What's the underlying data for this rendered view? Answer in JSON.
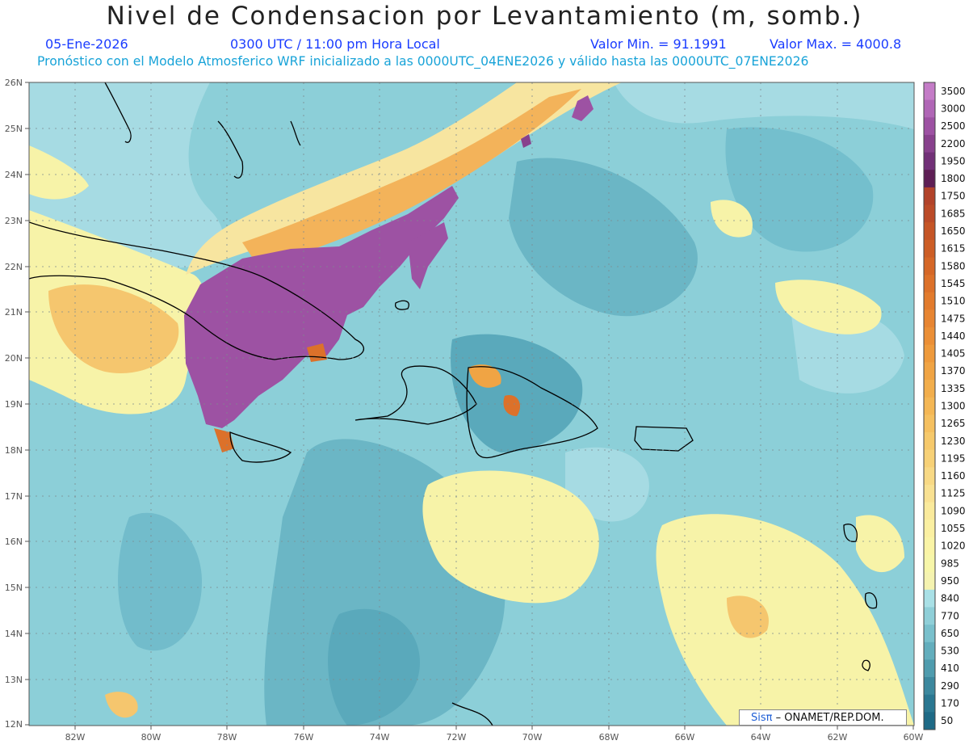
{
  "header": {
    "title": "Nivel de Condensacion por Levantamiento (m, somb.)",
    "date": "05-Ene-2026",
    "time": "0300 UTC / 11:00 pm Hora Local",
    "min_label": "Valor Min. = 91.1991",
    "max_label": "Valor Max. = 4000.8",
    "model_line": "Pronóstico con el Modelo Atmosferico WRF inicializado a las 0000UTC_04ENE2026 y válido hasta las  0000UTC_07ENE2026"
  },
  "axes": {
    "lat_labels": [
      "26N",
      "25N",
      "24N",
      "23N",
      "22N",
      "21N",
      "20N",
      "19N",
      "18N",
      "17N",
      "16N",
      "15N",
      "14N",
      "13N",
      "12N"
    ],
    "lon_labels": [
      "82W",
      "80W",
      "78W",
      "76W",
      "74W",
      "72W",
      "70W",
      "68W",
      "66W",
      "64W",
      "62W",
      "60W"
    ]
  },
  "colorbar": {
    "levels": [
      "3500",
      "3000",
      "2500",
      "2200",
      "1950",
      "1800",
      "1750",
      "1685",
      "1650",
      "1615",
      "1580",
      "1545",
      "1510",
      "1475",
      "1440",
      "1405",
      "1370",
      "1335",
      "1300",
      "1265",
      "1230",
      "1195",
      "1160",
      "1125",
      "1090",
      "1055",
      "1020",
      "985",
      "950",
      "840",
      "770",
      "650",
      "530",
      "410",
      "290",
      "170",
      "50"
    ],
    "colors": [
      "#c47cc7",
      "#b066b6",
      "#9d52a3",
      "#88418d",
      "#723178",
      "#5e1f55",
      "#b2432a",
      "#bb4b28",
      "#c55526",
      "#cd5e26",
      "#d56727",
      "#dc712a",
      "#e27b2d",
      "#e78532",
      "#eb8f36",
      "#ee9a3c",
      "#f0a444",
      "#f2ae4c",
      "#f4b755",
      "#f5c060",
      "#f6c96b",
      "#f7d177",
      "#f8d985",
      "#f9e192",
      "#faea9c",
      "#fbf0a2",
      "#faf4a6",
      "#f7f6a9",
      "#f5f3b0",
      "#a9e0e6",
      "#8fcfd8",
      "#79c0cc",
      "#63aebd",
      "#4f9cae",
      "#3c889e",
      "#2a7791",
      "#1e6a86"
    ],
    "color_legend": "3500 → 50 m"
  },
  "credit": {
    "sis": "Sisπ",
    "org": "– ONAMET/REP.DOM."
  }
}
